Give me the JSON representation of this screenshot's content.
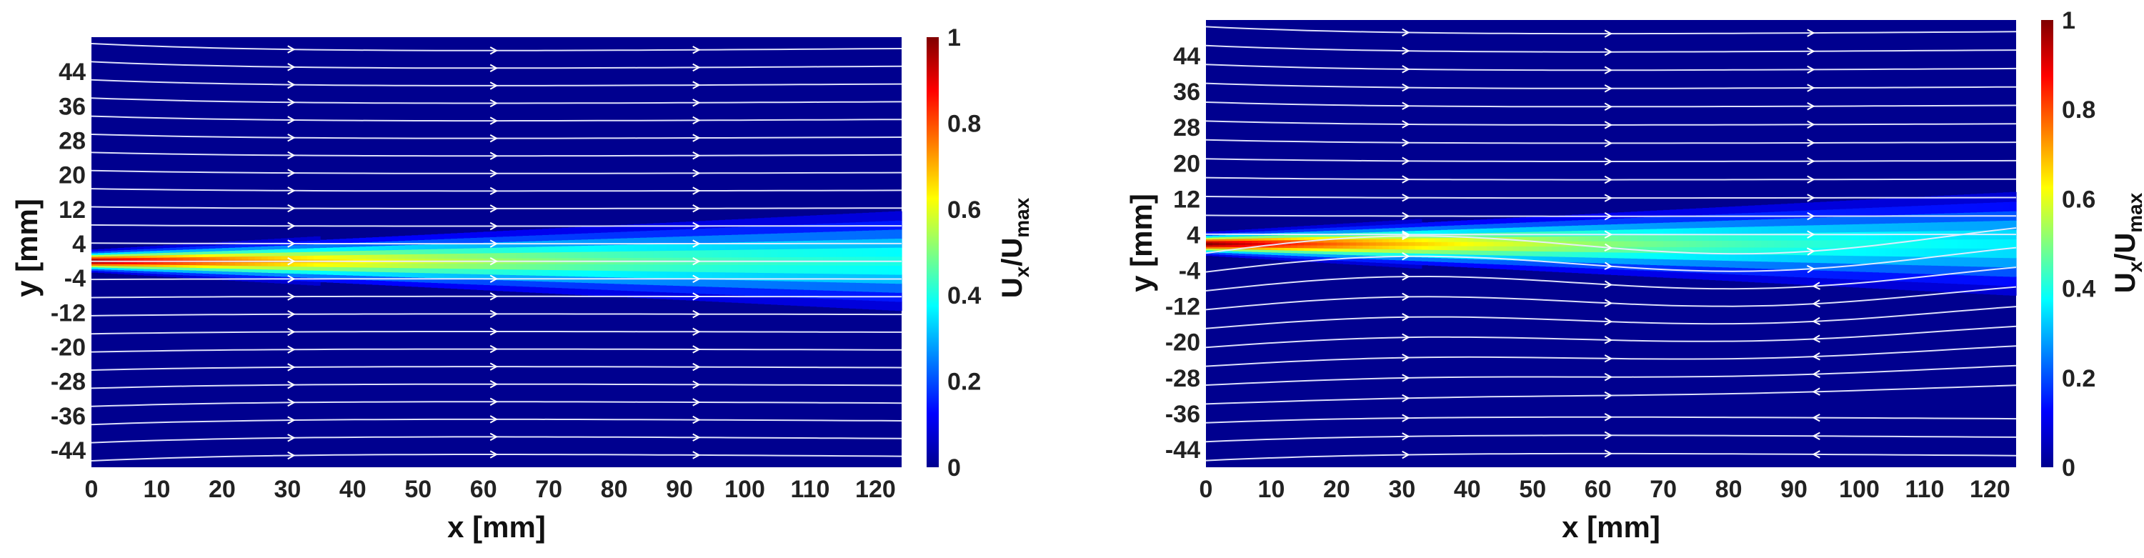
{
  "chart_data": [
    {
      "type": "heatmap",
      "subtype": "velocity contour with streamlines",
      "xlabel": "x [mm]",
      "ylabel": "y [mm]",
      "xlim": [
        0,
        124
      ],
      "ylim": [
        -48,
        52
      ],
      "x_ticks": [
        "0",
        "10",
        "20",
        "30",
        "40",
        "50",
        "60",
        "70",
        "80",
        "90",
        "100",
        "110",
        "120"
      ],
      "y_ticks": [
        "-44",
        "-36",
        "-28",
        "-20",
        "-12",
        "-4",
        "4",
        "12",
        "20",
        "28",
        "36",
        "44"
      ],
      "colorbar": {
        "label_main": "U",
        "label_sub1": "x",
        "label_slash": "/U",
        "label_sub2": "max",
        "range": [
          0,
          1
        ],
        "ticks": [
          "0",
          "0.2",
          "0.4",
          "0.6",
          "0.8",
          "1"
        ]
      },
      "jet": {
        "core_value": 1.0,
        "centerline_y": 0,
        "decay_half_length_x": 30,
        "far_value": 0.35
      },
      "streamlines": "entrainment toward jet from both sides, flow in +x direction"
    },
    {
      "type": "heatmap",
      "subtype": "velocity contour with streamlines",
      "xlabel": "x [mm]",
      "ylabel": "y [mm]",
      "xlim": [
        0,
        124
      ],
      "ylim": [
        -48,
        52
      ],
      "x_ticks": [
        "0",
        "10",
        "20",
        "30",
        "40",
        "50",
        "60",
        "70",
        "80",
        "90",
        "100",
        "110",
        "120"
      ],
      "y_ticks": [
        "-44",
        "-36",
        "-28",
        "-20",
        "-12",
        "-4",
        "4",
        "12",
        "20",
        "28",
        "36",
        "44"
      ],
      "colorbar": {
        "label_main": "U",
        "label_sub1": "x",
        "label_slash": "/U",
        "label_sub2": "max",
        "range": [
          0,
          1
        ],
        "ticks": [
          "0",
          "0.2",
          "0.4",
          "0.6",
          "0.8",
          "1"
        ]
      },
      "jet": {
        "core_value": 1.0,
        "centerline_y": 2,
        "decay_half_length_x": 32,
        "far_value": 0.3
      },
      "streamlines": "upper region flows in +x; lower region shows recirculating vortex with reverse flow"
    }
  ]
}
